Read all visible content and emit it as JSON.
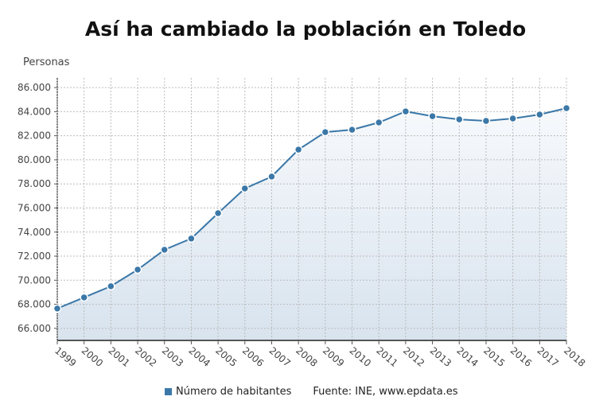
{
  "title": "Así ha cambiado la población en Toledo",
  "chart_data": {
    "type": "area",
    "title": "Así ha cambiado la población en Toledo",
    "ylabel": "Personas",
    "xlabel": "",
    "ylim": [
      65000,
      86800
    ],
    "yticks": [
      66000,
      68000,
      70000,
      72000,
      74000,
      76000,
      78000,
      80000,
      82000,
      84000,
      86000
    ],
    "ytick_labels": [
      "66.000",
      "68.000",
      "70.000",
      "72.000",
      "74.000",
      "76.000",
      "78.000",
      "80.000",
      "82.000",
      "84.000",
      "86.000"
    ],
    "categories": [
      "1999",
      "2000",
      "2001",
      "2002",
      "2003",
      "2004",
      "2005",
      "2006",
      "2007",
      "2008",
      "2009",
      "2010",
      "2011",
      "2012",
      "2013",
      "2014",
      "2015",
      "2016",
      "2017",
      "2018"
    ],
    "series": [
      {
        "name": "Número de habitantes",
        "color": "#3b78a8",
        "values": [
          67650,
          68570,
          69500,
          70880,
          72530,
          73460,
          75570,
          77620,
          78610,
          80850,
          82300,
          82500,
          83100,
          84020,
          83620,
          83360,
          83230,
          83430,
          83760,
          84290
        ]
      }
    ],
    "grid": true,
    "legend": "bottom",
    "source": "Fuente: INE, www.epdata.es"
  }
}
